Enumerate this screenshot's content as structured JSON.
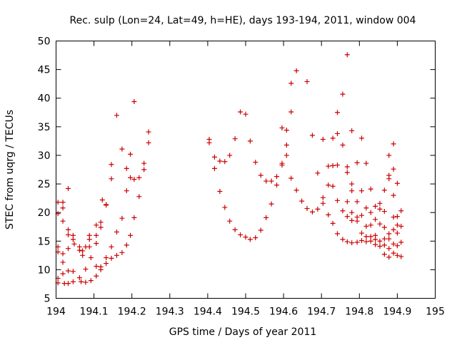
{
  "chart_data": {
    "type": "scatter",
    "title": "Rec. sulp (Lon=24, Lat=49, h=HE), days 193-194, 2011, window 004",
    "xlabel": "GPS time / Days of year 2011",
    "ylabel": "STEC from uqrg / TECUs",
    "xlim": [
      194,
      195
    ],
    "ylim": [
      5,
      50
    ],
    "xticks": [
      194,
      194.1,
      194.2,
      194.3,
      194.4,
      194.5,
      194.6,
      194.7,
      194.8,
      194.9,
      195
    ],
    "xtick_labels": [
      "194",
      "194.1",
      "194.2",
      "194.3",
      "194.4",
      "194.5",
      "194.6",
      "194.7",
      "194.8",
      "194.9",
      "195"
    ],
    "yticks": [
      5,
      10,
      15,
      20,
      25,
      30,
      35,
      40,
      45,
      50
    ],
    "ytick_labels": [
      "5",
      "10",
      "15",
      "20",
      "25",
      "30",
      "35",
      "40",
      "45",
      "50"
    ],
    "grid": false,
    "marker": "+",
    "marker_color": "#cc0000",
    "series": [
      {
        "name": "STEC",
        "points": [
          [
            194.005,
            21.8
          ],
          [
            194.005,
            19.8
          ],
          [
            194.005,
            14.0
          ],
          [
            194.005,
            13.1
          ],
          [
            194.005,
            8.5
          ],
          [
            194.005,
            7.7
          ],
          [
            194.018,
            21.8
          ],
          [
            194.018,
            20.8
          ],
          [
            194.018,
            18.5
          ],
          [
            194.018,
            12.8
          ],
          [
            194.018,
            11.3
          ],
          [
            194.018,
            9.3
          ],
          [
            194.022,
            7.6
          ],
          [
            194.032,
            24.2
          ],
          [
            194.032,
            17.0
          ],
          [
            194.032,
            16.1
          ],
          [
            194.032,
            13.7
          ],
          [
            194.032,
            9.8
          ],
          [
            194.032,
            7.6
          ],
          [
            194.045,
            16.0
          ],
          [
            194.045,
            15.3
          ],
          [
            194.048,
            14.5
          ],
          [
            194.045,
            9.7
          ],
          [
            194.045,
            7.9
          ],
          [
            194.062,
            14.0
          ],
          [
            194.062,
            13.4
          ],
          [
            194.062,
            8.6
          ],
          [
            194.066,
            7.9
          ],
          [
            194.07,
            13.3
          ],
          [
            194.07,
            12.5
          ],
          [
            194.078,
            14.0
          ],
          [
            194.078,
            10.1
          ],
          [
            194.078,
            7.8
          ],
          [
            194.088,
            16.0
          ],
          [
            194.088,
            15.3
          ],
          [
            194.088,
            14.0
          ],
          [
            194.092,
            12.1
          ],
          [
            194.092,
            8.1
          ],
          [
            194.106,
            17.8
          ],
          [
            194.106,
            16.0
          ],
          [
            194.106,
            14.6
          ],
          [
            194.106,
            10.6
          ],
          [
            194.106,
            8.9
          ],
          [
            194.118,
            18.3
          ],
          [
            194.118,
            17.4
          ],
          [
            194.118,
            10.5
          ],
          [
            194.118,
            10.0
          ],
          [
            194.122,
            22.2
          ],
          [
            194.132,
            21.4
          ],
          [
            194.132,
            21.3
          ],
          [
            194.132,
            12.1
          ],
          [
            194.132,
            11.1
          ],
          [
            194.146,
            28.4
          ],
          [
            194.146,
            25.9
          ],
          [
            194.146,
            14.0
          ],
          [
            194.146,
            12.0
          ],
          [
            194.16,
            37.0
          ],
          [
            194.16,
            16.6
          ],
          [
            194.16,
            12.5
          ],
          [
            194.174,
            31.1
          ],
          [
            194.174,
            19.0
          ],
          [
            194.174,
            13.0
          ],
          [
            194.186,
            27.7
          ],
          [
            194.186,
            23.8
          ],
          [
            194.186,
            14.3
          ],
          [
            194.196,
            30.2
          ],
          [
            194.196,
            26.1
          ],
          [
            194.196,
            16.0
          ],
          [
            194.206,
            39.4
          ],
          [
            194.206,
            25.8
          ],
          [
            194.206,
            19.1
          ],
          [
            194.219,
            26.1
          ],
          [
            194.219,
            22.8
          ],
          [
            194.232,
            28.6
          ],
          [
            194.232,
            27.5
          ],
          [
            194.244,
            34.1
          ],
          [
            194.244,
            32.2
          ],
          [
            194.404,
            32.8
          ],
          [
            194.404,
            32.2
          ],
          [
            194.418,
            29.7
          ],
          [
            194.418,
            27.7
          ],
          [
            194.432,
            29.0
          ],
          [
            194.432,
            23.7
          ],
          [
            194.445,
            28.9
          ],
          [
            194.445,
            20.9
          ],
          [
            194.458,
            30.0
          ],
          [
            194.458,
            18.5
          ],
          [
            194.472,
            32.9
          ],
          [
            194.472,
            17.0
          ],
          [
            194.486,
            37.6
          ],
          [
            194.486,
            16.1
          ],
          [
            194.5,
            37.2
          ],
          [
            194.5,
            15.7
          ],
          [
            194.512,
            32.5
          ],
          [
            194.512,
            15.3
          ],
          [
            194.526,
            28.8
          ],
          [
            194.526,
            15.6
          ],
          [
            194.54,
            26.5
          ],
          [
            194.54,
            16.9
          ],
          [
            194.554,
            25.5
          ],
          [
            194.554,
            19.1
          ],
          [
            194.568,
            25.5
          ],
          [
            194.568,
            21.5
          ],
          [
            194.582,
            26.3
          ],
          [
            194.582,
            24.8
          ],
          [
            194.596,
            34.8
          ],
          [
            194.596,
            28.6
          ],
          [
            194.596,
            28.3
          ],
          [
            194.608,
            34.4
          ],
          [
            194.608,
            31.8
          ],
          [
            194.608,
            30.0
          ],
          [
            194.62,
            42.6
          ],
          [
            194.62,
            37.6
          ],
          [
            194.62,
            26.0
          ],
          [
            194.634,
            44.8
          ],
          [
            194.634,
            23.9
          ],
          [
            194.648,
            22.0
          ],
          [
            194.662,
            42.9
          ],
          [
            194.662,
            20.7
          ],
          [
            194.676,
            33.5
          ],
          [
            194.676,
            20.1
          ],
          [
            194.69,
            26.9
          ],
          [
            194.69,
            20.6
          ],
          [
            194.704,
            32.8
          ],
          [
            194.704,
            22.6
          ],
          [
            194.704,
            21.6
          ],
          [
            194.718,
            28.1
          ],
          [
            194.718,
            24.8
          ],
          [
            194.718,
            19.6
          ],
          [
            194.73,
            33.0
          ],
          [
            194.73,
            28.2
          ],
          [
            194.73,
            24.6
          ],
          [
            194.73,
            18.1
          ],
          [
            194.742,
            33.8
          ],
          [
            194.742,
            28.3
          ],
          [
            194.742,
            22.1
          ],
          [
            194.742,
            16.3
          ],
          [
            194.742,
            37.5
          ],
          [
            194.756,
            40.7
          ],
          [
            194.756,
            31.8
          ],
          [
            194.756,
            20.3
          ],
          [
            194.756,
            15.3
          ],
          [
            194.768,
            47.6
          ],
          [
            194.768,
            28.0
          ],
          [
            194.768,
            27.0
          ],
          [
            194.768,
            21.9
          ],
          [
            194.768,
            19.3
          ],
          [
            194.768,
            14.9
          ],
          [
            194.78,
            34.3
          ],
          [
            194.78,
            25.0
          ],
          [
            194.78,
            23.8
          ],
          [
            194.78,
            20.0
          ],
          [
            194.78,
            18.6
          ],
          [
            194.78,
            14.7
          ],
          [
            194.794,
            28.7
          ],
          [
            194.794,
            21.9
          ],
          [
            194.794,
            19.2
          ],
          [
            194.794,
            18.5
          ],
          [
            194.794,
            14.8
          ],
          [
            194.806,
            33.0
          ],
          [
            194.806,
            23.8
          ],
          [
            194.806,
            19.5
          ],
          [
            194.806,
            16.4
          ],
          [
            194.806,
            15.1
          ],
          [
            194.818,
            28.6
          ],
          [
            194.818,
            20.8
          ],
          [
            194.818,
            17.6
          ],
          [
            194.818,
            15.8
          ],
          [
            194.818,
            14.9
          ],
          [
            194.83,
            24.1
          ],
          [
            194.83,
            20.0
          ],
          [
            194.83,
            17.8
          ],
          [
            194.83,
            15.8
          ],
          [
            194.83,
            15.0
          ],
          [
            194.842,
            21.1
          ],
          [
            194.842,
            18.8
          ],
          [
            194.842,
            16.0
          ],
          [
            194.842,
            15.3
          ],
          [
            194.842,
            14.4
          ],
          [
            194.854,
            21.6
          ],
          [
            194.854,
            20.6
          ],
          [
            194.854,
            18.0
          ],
          [
            194.854,
            15.0
          ],
          [
            194.854,
            14.1
          ],
          [
            194.866,
            23.9
          ],
          [
            194.866,
            20.2
          ],
          [
            194.866,
            17.4
          ],
          [
            194.866,
            15.4
          ],
          [
            194.866,
            14.3
          ],
          [
            194.866,
            12.7
          ],
          [
            194.878,
            30.0
          ],
          [
            194.878,
            26.5
          ],
          [
            194.878,
            25.9
          ],
          [
            194.878,
            16.3
          ],
          [
            194.878,
            15.4
          ],
          [
            194.878,
            13.7
          ],
          [
            194.878,
            12.2
          ],
          [
            194.89,
            32.0
          ],
          [
            194.89,
            27.6
          ],
          [
            194.89,
            23.0
          ],
          [
            194.89,
            19.2
          ],
          [
            194.89,
            17.0
          ],
          [
            194.89,
            14.5
          ],
          [
            194.89,
            12.9
          ],
          [
            194.9,
            25.1
          ],
          [
            194.9,
            19.3
          ],
          [
            194.9,
            17.8
          ],
          [
            194.9,
            16.4
          ],
          [
            194.9,
            14.2
          ],
          [
            194.9,
            12.5
          ],
          [
            194.91,
            20.3
          ],
          [
            194.91,
            17.6
          ],
          [
            194.91,
            14.8
          ],
          [
            194.91,
            12.3
          ]
        ]
      }
    ]
  }
}
